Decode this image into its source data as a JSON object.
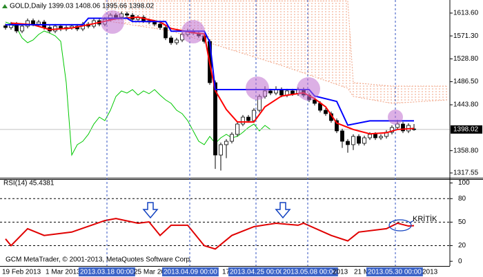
{
  "chart_data": [
    {
      "type": "candlestick",
      "title": "GOLD,Daily  1399.03 1408.06 1395.66 1398.02",
      "open": [
        1590.0,
        1586.8,
        1593.1,
        1580.4,
        1589.3,
        1599.5,
        1593.1,
        1597.0,
        1586.8,
        1580.4,
        1589.3,
        1584.2,
        1586.8,
        1589.3,
        1584.2,
        1593.1,
        1589.3,
        1599.5,
        1593.1,
        1602.1,
        1609.7,
        1605.9,
        1612.3,
        1609.7,
        1602.1,
        1605.9,
        1599.5,
        1597.0,
        1593.1,
        1586.8,
        1567.6,
        1558.7,
        1563.8,
        1574.0,
        1580.4,
        1576.5,
        1571.4,
        1561.2,
        1484.7,
        1350.7,
        1369.9,
        1376.2,
        1389.0,
        1408.1,
        1420.9,
        1414.5,
        1433.6,
        1459.2,
        1469.4,
        1465.5,
        1471.9,
        1461.7,
        1469.4,
        1464.3,
        1471.9,
        1461.7,
        1452.8,
        1446.4,
        1433.6,
        1427.3,
        1414.5,
        1395.4,
        1376.2,
        1369.9,
        1385.2,
        1372.4,
        1382.6,
        1389.0,
        1382.6,
        1385.2,
        1392.8,
        1401.7,
        1408.1,
        1395.4,
        1399.03
      ],
      "high": [
        1594.0,
        1597.1,
        1597.1,
        1593.3,
        1603.5,
        1603.5,
        1601.0,
        1601.0,
        1590.8,
        1593.3,
        1593.3,
        1590.8,
        1593.3,
        1593.3,
        1597.1,
        1597.1,
        1603.5,
        1603.5,
        1606.1,
        1613.7,
        1613.7,
        1616.3,
        1616.3,
        1613.7,
        1609.9,
        1609.9,
        1603.5,
        1601.0,
        1597.1,
        1590.8,
        1571.6,
        1567.8,
        1578.0,
        1584.4,
        1584.4,
        1580.5,
        1575.4,
        1565.2,
        1488.7,
        1373.9,
        1380.2,
        1393.0,
        1412.1,
        1424.9,
        1424.9,
        1437.6,
        1463.2,
        1478.0,
        1473.4,
        1478.0,
        1475.9,
        1473.4,
        1473.4,
        1475.9,
        1475.9,
        1465.7,
        1456.8,
        1450.4,
        1437.6,
        1431.3,
        1418.5,
        1399.4,
        1380.2,
        1389.2,
        1389.2,
        1386.6,
        1393.0,
        1393.0,
        1389.2,
        1396.8,
        1405.7,
        1416.0,
        1412.1,
        1409.6,
        1408.06
      ],
      "low": [
        1582.8,
        1582.8,
        1576.4,
        1576.4,
        1585.3,
        1589.1,
        1589.1,
        1582.8,
        1576.4,
        1576.4,
        1580.2,
        1580.2,
        1582.8,
        1580.2,
        1580.2,
        1585.3,
        1585.3,
        1589.1,
        1589.1,
        1598.1,
        1601.9,
        1601.9,
        1605.7,
        1598.1,
        1598.1,
        1595.5,
        1593.0,
        1589.1,
        1582.8,
        1563.6,
        1554.7,
        1554.7,
        1559.8,
        1570.0,
        1572.5,
        1567.4,
        1557.2,
        1480.7,
        1325.0,
        1322.0,
        1345.0,
        1372.2,
        1385.0,
        1404.1,
        1410.5,
        1410.5,
        1429.6,
        1455.2,
        1461.5,
        1461.5,
        1457.7,
        1457.7,
        1460.3,
        1460.3,
        1457.7,
        1448.8,
        1442.4,
        1429.6,
        1423.3,
        1410.5,
        1391.4,
        1364.0,
        1355.0,
        1360.0,
        1368.4,
        1368.4,
        1378.6,
        1378.6,
        1378.6,
        1381.2,
        1388.8,
        1397.7,
        1391.4,
        1391.4,
        1395.66
      ],
      "close": [
        1586.8,
        1593.1,
        1580.4,
        1589.3,
        1599.5,
        1593.1,
        1597.0,
        1586.8,
        1580.4,
        1589.3,
        1584.2,
        1586.8,
        1589.3,
        1584.2,
        1593.1,
        1589.3,
        1599.5,
        1593.1,
        1602.1,
        1609.7,
        1605.9,
        1612.3,
        1609.7,
        1602.1,
        1605.9,
        1599.5,
        1597.0,
        1593.1,
        1586.8,
        1567.6,
        1558.7,
        1563.8,
        1574.0,
        1580.4,
        1576.5,
        1571.4,
        1561.2,
        1484.7,
        1350.7,
        1369.9,
        1376.2,
        1389.0,
        1408.1,
        1420.9,
        1414.5,
        1433.6,
        1459.2,
        1469.4,
        1465.5,
        1471.9,
        1461.7,
        1469.4,
        1464.3,
        1471.9,
        1461.7,
        1452.8,
        1446.4,
        1433.6,
        1427.3,
        1414.5,
        1395.4,
        1376.2,
        1369.9,
        1385.2,
        1372.4,
        1382.6,
        1389.0,
        1382.6,
        1385.2,
        1392.8,
        1401.7,
        1408.1,
        1395.4,
        1405.6,
        1398.02
      ],
      "up_color": "#ffffff",
      "down_color": "#000000",
      "lines": [
        {
          "color": "#ff0000",
          "x": [
            1,
            5,
            8,
            12,
            16,
            20,
            24,
            28,
            30,
            34,
            36,
            37,
            38,
            40,
            42,
            45,
            47,
            50,
            54,
            56,
            58,
            60,
            63,
            66,
            69,
            71,
            74
          ],
          "values": [
            1595,
            1592,
            1583,
            1586,
            1594,
            1603,
            1606,
            1597,
            1585,
            1577,
            1575,
            1520,
            1470,
            1435,
            1412,
            1412,
            1440,
            1460,
            1466,
            1455,
            1440,
            1410,
            1398,
            1390,
            1392,
            1398,
            1400
          ]
        },
        {
          "color": "#0000ff",
          "x": [
            0,
            14,
            15,
            22,
            23,
            29,
            30,
            36,
            37,
            38,
            55,
            56,
            60,
            62,
            66,
            74
          ],
          "values": [
            1592,
            1592,
            1604,
            1604,
            1598,
            1598,
            1580,
            1580,
            1560,
            1472,
            1472,
            1460,
            1450,
            1406,
            1414,
            1414
          ]
        }
      ],
      "chikou": {
        "color": "#00c800",
        "shift": 26
      },
      "cloud": {
        "color": "#f0a080",
        "x": [
          18,
          30,
          40,
          50,
          62,
          63,
          70,
          80
        ],
        "span_a": [
          1599.5,
          1580.4,
          1548.5,
          1516.6,
          1474.4,
          1459.2,
          1446.4,
          1452.8
        ],
        "span_b": [
          1636.0,
          1636.0,
          1636.0,
          1636.0,
          1636.0,
          1484.7,
          1478.3,
          1478.3
        ]
      },
      "xlim": [
        -1,
        80.5
      ],
      "ylim": [
        1308.6,
        1637.8
      ],
      "yticks": [
        {
          "value": 1613.6,
          "label": "1613.60"
        },
        {
          "value": 1571.3,
          "label": "1571.30"
        },
        {
          "value": 1528.8,
          "label": "1528.80"
        },
        {
          "value": 1486.5,
          "label": "1486.50"
        },
        {
          "value": 1443.8,
          "label": "1443.80"
        },
        {
          "value": 1358.8,
          "label": "1358.80"
        },
        1317.55
      ],
      "last_price": 1398.02,
      "xlabels": [
        "19 Feb 2013",
        "1 Mar 2013",
        "2013.03.18 00:00",
        "25 Mar 20",
        "2013.04.09 00:00",
        "17",
        "2013.04.25 00:00",
        "2013.05.08 00:00",
        "2013",
        "21 M",
        "2013.05.30 00:00",
        "2013"
      ],
      "watermark": "GCM MetaTrader, © 2001-2013, MetaQuotes Software Corp."
    },
    {
      "type": "line",
      "title": "RSI(14) 45.4381",
      "x": [
        0,
        1,
        4,
        7,
        12,
        18,
        20,
        24,
        26,
        28,
        30,
        33,
        36,
        38,
        41,
        45,
        49,
        53,
        54,
        59,
        62,
        64,
        69,
        71,
        73,
        74
      ],
      "values": [
        28.6,
        20,
        41.6,
        33,
        37.3,
        52,
        54.6,
        48.6,
        50.3,
        33,
        46,
        46,
        20,
        15.7,
        33,
        44.2,
        48.6,
        46,
        48.6,
        33,
        26,
        37.3,
        41.6,
        48.6,
        45,
        45.4381
      ],
      "color": "#e00000",
      "xlim": [
        -1,
        80.5
      ],
      "ylim": [
        -6,
        104
      ],
      "yticks": [
        100,
        80,
        50,
        20,
        0
      ],
      "levels": [
        80,
        50,
        20
      ],
      "annotation": "KRİTİK"
    }
  ]
}
